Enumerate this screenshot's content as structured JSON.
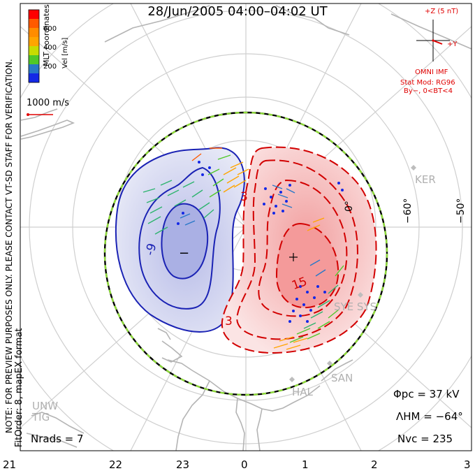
{
  "title": "28/Jun/2005 04:00–04:02 UT",
  "colorbar": {
    "label": "Vel [m/s]",
    "ticks": [
      "600",
      "400",
      "200"
    ],
    "colors": [
      "#ff0000",
      "#ff5a00",
      "#ffa500",
      "#c8dc00",
      "#50c828",
      "#2db46e",
      "#2878c8",
      "#1428e6"
    ]
  },
  "coords_label": "MLT coordinates",
  "ref_vector": "1000 m/s",
  "imf": {
    "z_label": "+Z (5 nT)",
    "y_label": "+Y",
    "source": "OMNI IMF",
    "model_line1": "Stat Mod: RG96",
    "model_line2": "By−, 0<BT<4"
  },
  "stats": {
    "phi_pc": "Φpc  =  37 kV",
    "lambda_hm": "ΛHM  =  −64°",
    "n_vc": "Nvc  =  235",
    "n_rads": "Nrads  =  7"
  },
  "note": "NOTE: FOR PREVIEW PURPOSES ONLY. PLEASE CONTACT VT-SD STAFF FOR VERIFICATION.",
  "fit": "FitOrder: 8, mapEX format",
  "mlt_labels": [
    "21",
    "22",
    "23",
    "0",
    "1",
    "2",
    "3"
  ],
  "lat_labels": [
    "0°",
    "−60°",
    "−50°"
  ],
  "stations": [
    "KER",
    "SYE SYS",
    "SAN",
    "HAL",
    "UNW",
    "TIG"
  ],
  "contour_labels": [
    "-9",
    "−",
    "3",
    "3",
    "15",
    "3",
    "+"
  ]
}
